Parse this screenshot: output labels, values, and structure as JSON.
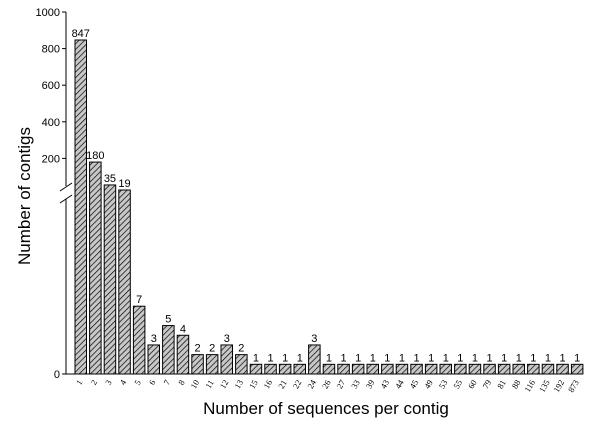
{
  "chart_data": {
    "type": "bar",
    "title": "",
    "xlabel": "Number of sequences per contig",
    "ylabel": "Number of contigs",
    "axis_break": true,
    "upper_ylim": [
      0,
      1000
    ],
    "upper_yticks": [
      "1000",
      "800",
      "600",
      "400",
      "200"
    ],
    "lower_ylim": [
      0,
      20
    ],
    "lower_yticks": [
      "0"
    ],
    "grid": false,
    "bar_pattern": "diagonal-hatch",
    "categories": [
      "1",
      "2",
      "3",
      "4",
      "5",
      "6",
      "7",
      "8",
      "10",
      "11",
      "12",
      "13",
      "15",
      "16",
      "21",
      "22",
      "24",
      "26",
      "27",
      "33",
      "39",
      "43",
      "44",
      "45",
      "49",
      "53",
      "55",
      "60",
      "79",
      "81",
      "88",
      "116",
      "135",
      "192",
      "873"
    ],
    "values": [
      847,
      180,
      35,
      19,
      7,
      3,
      5,
      4,
      2,
      2,
      3,
      2,
      1,
      1,
      1,
      1,
      3,
      1,
      1,
      1,
      1,
      1,
      1,
      1,
      1,
      1,
      1,
      1,
      1,
      1,
      1,
      1,
      1,
      1,
      1
    ],
    "data_labels": [
      "847",
      "180",
      "35",
      "19",
      "7",
      "3",
      "5",
      "4",
      "2",
      "2",
      "3",
      "2",
      "1",
      "1",
      "1",
      "1",
      "3",
      "1",
      "1",
      "1",
      "1",
      "1",
      "1",
      "1",
      "1",
      "1",
      "1",
      "1",
      "1",
      "1",
      "1",
      "1",
      "1",
      "1",
      "1"
    ]
  }
}
